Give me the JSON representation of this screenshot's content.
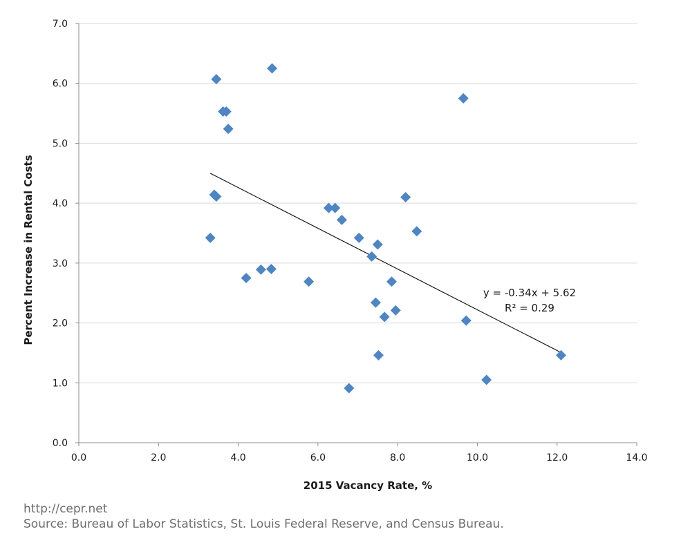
{
  "chart_data": {
    "type": "scatter",
    "xlabel": "2015 Vacancy Rate, %",
    "ylabel": "Percent Increase in Rental Costs",
    "xlim": [
      0,
      14
    ],
    "ylim": [
      0,
      7
    ],
    "x_ticks": [
      "0.0",
      "2.0",
      "4.0",
      "6.0",
      "8.0",
      "10.0",
      "12.0",
      "14.0"
    ],
    "y_ticks": [
      "0.0",
      "1.0",
      "2.0",
      "3.0",
      "4.0",
      "5.0",
      "6.0",
      "7.0"
    ],
    "grid": "horizontal",
    "marker_color": "#4a86c8",
    "series": [
      {
        "points": [
          {
            "x": 3.3,
            "y": 3.42
          },
          {
            "x": 3.4,
            "y": 4.14
          },
          {
            "x": 3.45,
            "y": 4.11
          },
          {
            "x": 3.45,
            "y": 6.07
          },
          {
            "x": 3.62,
            "y": 5.53
          },
          {
            "x": 3.7,
            "y": 5.53
          },
          {
            "x": 3.75,
            "y": 5.24
          },
          {
            "x": 4.2,
            "y": 2.75
          },
          {
            "x": 4.57,
            "y": 2.89
          },
          {
            "x": 4.83,
            "y": 2.9
          },
          {
            "x": 4.85,
            "y": 6.25
          },
          {
            "x": 5.77,
            "y": 2.69
          },
          {
            "x": 6.27,
            "y": 3.92
          },
          {
            "x": 6.43,
            "y": 3.92
          },
          {
            "x": 6.6,
            "y": 3.72
          },
          {
            "x": 6.78,
            "y": 0.91
          },
          {
            "x": 7.03,
            "y": 3.42
          },
          {
            "x": 7.35,
            "y": 3.11
          },
          {
            "x": 7.45,
            "y": 2.34
          },
          {
            "x": 7.5,
            "y": 3.31
          },
          {
            "x": 7.52,
            "y": 1.46
          },
          {
            "x": 7.67,
            "y": 2.1
          },
          {
            "x": 7.85,
            "y": 2.69
          },
          {
            "x": 7.95,
            "y": 2.21
          },
          {
            "x": 8.2,
            "y": 4.1
          },
          {
            "x": 8.48,
            "y": 3.53
          },
          {
            "x": 9.65,
            "y": 5.75
          },
          {
            "x": 9.72,
            "y": 2.04
          },
          {
            "x": 10.23,
            "y": 1.05
          },
          {
            "x": 12.1,
            "y": 1.46
          }
        ]
      }
    ],
    "trendline": {
      "type": "linear",
      "slope": -0.34,
      "intercept": 5.62,
      "x_range": [
        3.3,
        12.1
      ],
      "equation_label": "y = -0.34x + 5.62",
      "r2_label": "R² = 0.29",
      "color": "#1a1a1a"
    }
  },
  "footer": {
    "url": "http://cepr.net",
    "source": "Source: Bureau of Labor Statistics, St. Louis Federal Reserve, and Census Bureau."
  }
}
